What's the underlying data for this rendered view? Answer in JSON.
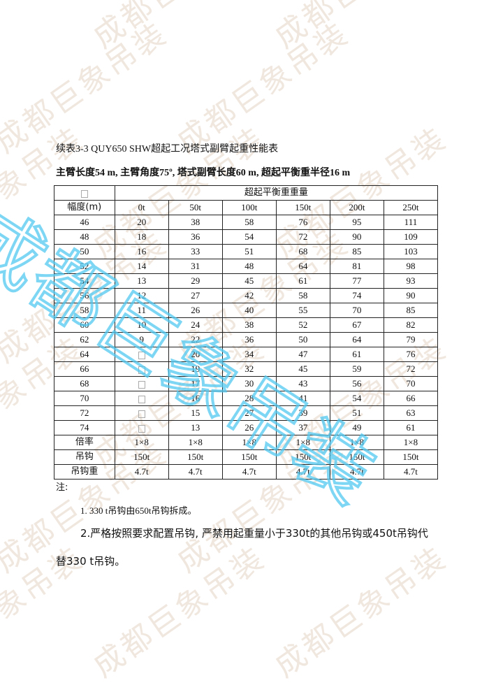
{
  "watermark": {
    "text": "成都巨象吊装",
    "color": "#c8aa8c",
    "overlay_color": "#50c8f0"
  },
  "title": "续表3-3 QUY650 SHW超起工况塔式副臂起重性能表",
  "subtitle": "主臂长度54 m, 主臂角度75º, 塔式副臂长度60 m, 超起平衡重半径16 m",
  "table": {
    "group_header": "超起平衡重重量",
    "radius_header": "幅度(m)",
    "columns": [
      "0t",
      "50t",
      "100t",
      "150t",
      "200t",
      "250t"
    ],
    "rows": [
      {
        "r": "46",
        "v": [
          "20",
          "38",
          "58",
          "76",
          "95",
          "111"
        ]
      },
      {
        "r": "48",
        "v": [
          "18",
          "36",
          "54",
          "72",
          "90",
          "109"
        ]
      },
      {
        "r": "50",
        "v": [
          "16",
          "33",
          "51",
          "68",
          "85",
          "103"
        ]
      },
      {
        "r": "52",
        "v": [
          "14",
          "31",
          "48",
          "64",
          "81",
          "98"
        ]
      },
      {
        "r": "54",
        "v": [
          "13",
          "29",
          "45",
          "61",
          "77",
          "93"
        ]
      },
      {
        "r": "56",
        "v": [
          "12",
          "27",
          "42",
          "58",
          "74",
          "90"
        ]
      },
      {
        "r": "58",
        "v": [
          "11",
          "26",
          "40",
          "55",
          "70",
          "85"
        ]
      },
      {
        "r": "60",
        "v": [
          "10",
          "24",
          "38",
          "52",
          "67",
          "82"
        ]
      },
      {
        "r": "62",
        "v": [
          "9",
          "22",
          "36",
          "50",
          "64",
          "79"
        ]
      },
      {
        "r": "64",
        "v": [
          "",
          "20",
          "34",
          "47",
          "61",
          "76"
        ]
      },
      {
        "r": "66",
        "v": [
          "",
          "19",
          "32",
          "45",
          "59",
          "72"
        ]
      },
      {
        "r": "68",
        "v": [
          "",
          "17",
          "30",
          "43",
          "56",
          "70"
        ]
      },
      {
        "r": "70",
        "v": [
          "",
          "16",
          "28",
          "41",
          "54",
          "66"
        ]
      },
      {
        "r": "72",
        "v": [
          "",
          "15",
          "27",
          "39",
          "51",
          "63"
        ]
      },
      {
        "r": "74",
        "v": [
          "",
          "13",
          "26",
          "37",
          "49",
          "61"
        ]
      }
    ],
    "footer": [
      {
        "label": "倍率",
        "v": [
          "1×8",
          "1×8",
          "1×8",
          "1×8",
          "1×8",
          "1×8"
        ]
      },
      {
        "label": "吊钩",
        "v": [
          "150t",
          "150t",
          "150t",
          "150t",
          "150t",
          "150t"
        ]
      },
      {
        "label": "吊钩重",
        "v": [
          "4.7t",
          "4.7t",
          "4.7t",
          "4.7t",
          "4.7t",
          "4.7t"
        ]
      }
    ]
  },
  "notes": {
    "heading": "注:",
    "item1": "1. 330 t吊钩由650t吊钩拆成。",
    "item2_line1": "2.严格按照要求配置吊钩, 严禁用起重量小于330t的其他吊钩或450t吊钩代",
    "item2_line2": "替330 t吊钩。"
  }
}
